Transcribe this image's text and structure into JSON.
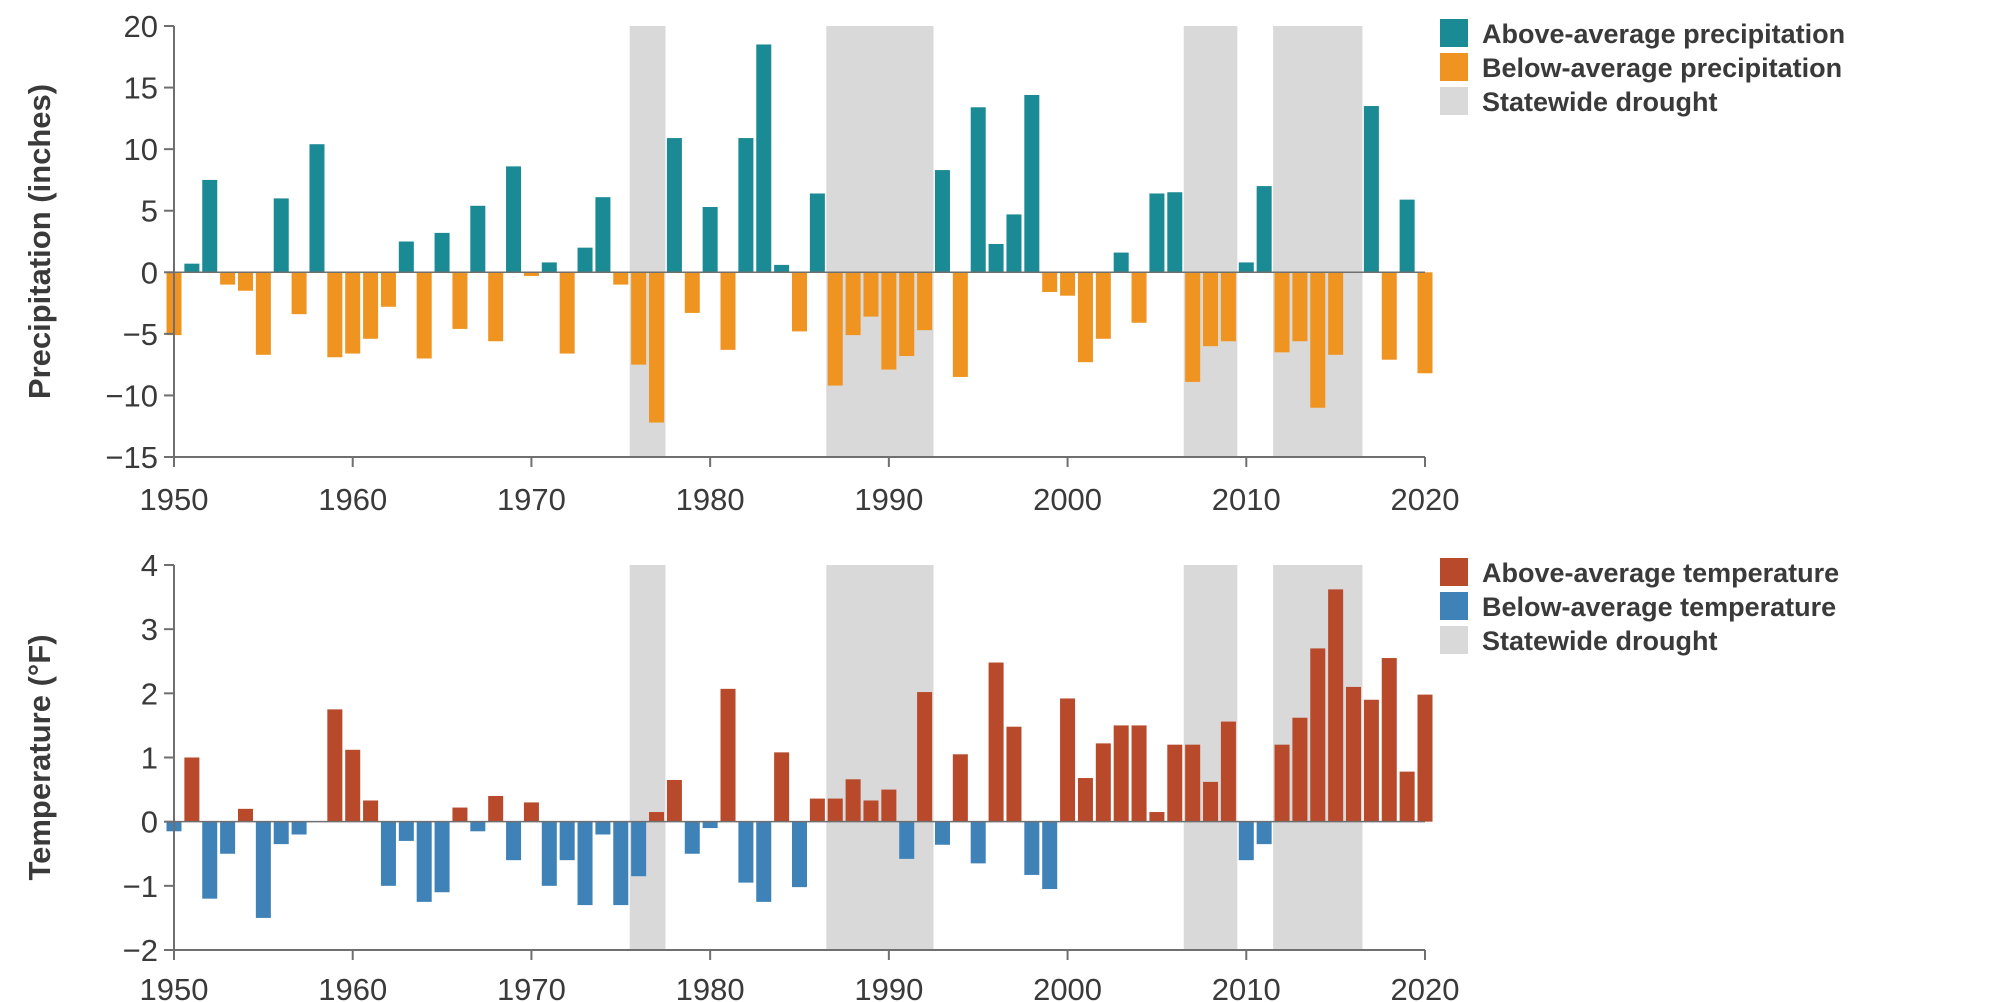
{
  "chart_data": [
    {
      "type": "bar",
      "ylabel": "Precipitation (inches)",
      "ylim": [
        -15,
        20
      ],
      "yticks": [
        -15,
        -10,
        -5,
        0,
        5,
        10,
        15,
        20
      ],
      "xlim": [
        1950,
        2020
      ],
      "xticks": [
        1950,
        1960,
        1970,
        1980,
        1990,
        2000,
        2010,
        2020
      ],
      "legend_position": "top-right",
      "legend": [
        "Above-average precipitation",
        "Below-average precipitation",
        "Statewide drought"
      ],
      "colors": {
        "positive": "#1a8a95",
        "negative": "#ef9421",
        "drought": "#d9d9d9"
      },
      "drought_periods": [
        [
          1976,
          1977
        ],
        [
          1987,
          1992
        ],
        [
          2007,
          2009
        ],
        [
          2012,
          2016
        ]
      ],
      "x": [
        1950,
        1951,
        1952,
        1953,
        1954,
        1955,
        1956,
        1957,
        1958,
        1959,
        1960,
        1961,
        1962,
        1963,
        1964,
        1965,
        1966,
        1967,
        1968,
        1969,
        1970,
        1971,
        1972,
        1973,
        1974,
        1975,
        1976,
        1977,
        1978,
        1979,
        1980,
        1981,
        1982,
        1983,
        1984,
        1985,
        1986,
        1987,
        1988,
        1989,
        1990,
        1991,
        1992,
        1993,
        1994,
        1995,
        1996,
        1997,
        1998,
        1999,
        2000,
        2001,
        2002,
        2003,
        2004,
        2005,
        2006,
        2007,
        2008,
        2009,
        2010,
        2011,
        2012,
        2013,
        2014,
        2015,
        2016,
        2017,
        2018,
        2019,
        2020
      ],
      "values": [
        -5.1,
        0.7,
        7.5,
        -1.0,
        -1.5,
        -6.7,
        6.0,
        -3.4,
        10.4,
        -6.9,
        -6.6,
        -5.4,
        -2.8,
        2.5,
        -7.0,
        3.2,
        -4.6,
        5.4,
        -5.6,
        8.6,
        -0.3,
        0.8,
        -6.6,
        2.0,
        6.1,
        -1.0,
        -7.5,
        -12.2,
        10.9,
        -3.3,
        5.3,
        -6.3,
        10.9,
        18.5,
        0.6,
        -4.8,
        6.4,
        -9.2,
        -5.1,
        -3.6,
        -7.9,
        -6.8,
        -4.7,
        8.3,
        -8.5,
        13.4,
        2.3,
        4.7,
        14.4,
        -1.6,
        -1.9,
        -7.3,
        -5.4,
        1.6,
        -4.1,
        6.4,
        6.5,
        -8.9,
        -6.0,
        -5.6,
        0.8,
        7.0,
        -6.5,
        -5.6,
        -11.0,
        -6.7,
        0.0,
        13.5,
        -7.1,
        5.9,
        -8.2
      ]
    },
    {
      "type": "bar",
      "ylabel": "Temperature (°F)",
      "ylim": [
        -2,
        4
      ],
      "yticks": [
        -2,
        -1,
        0,
        1,
        2,
        3,
        4
      ],
      "xlim": [
        1950,
        2020
      ],
      "xticks": [
        1950,
        1960,
        1970,
        1980,
        1990,
        2000,
        2010,
        2020
      ],
      "legend_position": "top-right",
      "legend": [
        "Above-average temperature",
        "Below-average temperature",
        "Statewide drought"
      ],
      "colors": {
        "positive": "#b8492a",
        "negative": "#3f82b8",
        "drought": "#d9d9d9"
      },
      "drought_periods": [
        [
          1976,
          1977
        ],
        [
          1987,
          1992
        ],
        [
          2007,
          2009
        ],
        [
          2012,
          2016
        ]
      ],
      "x": [
        1950,
        1951,
        1952,
        1953,
        1954,
        1955,
        1956,
        1957,
        1958,
        1959,
        1960,
        1961,
        1962,
        1963,
        1964,
        1965,
        1966,
        1967,
        1968,
        1969,
        1970,
        1971,
        1972,
        1973,
        1974,
        1975,
        1976,
        1977,
        1978,
        1979,
        1980,
        1981,
        1982,
        1983,
        1984,
        1985,
        1986,
        1987,
        1988,
        1989,
        1990,
        1991,
        1992,
        1993,
        1994,
        1995,
        1996,
        1997,
        1998,
        1999,
        2000,
        2001,
        2002,
        2003,
        2004,
        2005,
        2006,
        2007,
        2008,
        2009,
        2010,
        2011,
        2012,
        2013,
        2014,
        2015,
        2016,
        2017,
        2018,
        2019,
        2020
      ],
      "values": [
        -0.15,
        1.0,
        -1.2,
        -0.5,
        0.2,
        -1.5,
        -0.35,
        -0.2,
        0.0,
        1.75,
        1.12,
        0.33,
        -1.0,
        -0.3,
        -1.25,
        -1.1,
        0.22,
        -0.15,
        0.4,
        -0.6,
        0.3,
        -1.0,
        -0.6,
        -1.3,
        -0.2,
        -1.3,
        -0.85,
        0.15,
        0.65,
        -0.5,
        -0.1,
        2.07,
        -0.95,
        -1.25,
        1.08,
        -1.02,
        0.36,
        0.36,
        0.66,
        0.33,
        0.5,
        -0.58,
        2.02,
        -0.36,
        1.05,
        -0.65,
        2.48,
        1.48,
        -0.83,
        -1.05,
        1.92,
        0.68,
        1.22,
        1.5,
        1.5,
        0.15,
        1.2,
        1.2,
        0.62,
        1.56,
        -0.6,
        -0.35,
        1.2,
        1.62,
        2.7,
        3.62,
        2.1,
        1.9,
        2.55,
        0.78,
        1.98
      ]
    }
  ]
}
